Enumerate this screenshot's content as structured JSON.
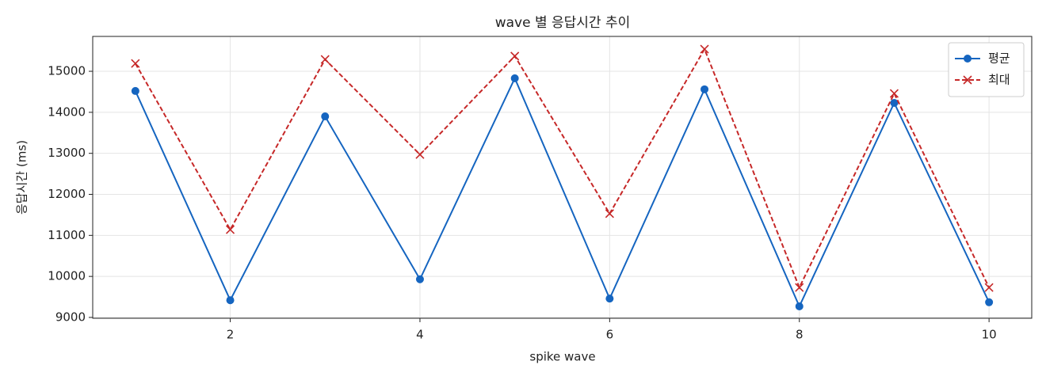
{
  "chart_data": {
    "type": "line",
    "title": "wave 별 응답시간 추이",
    "xlabel": "spike wave",
    "ylabel": "응답시간 (ms)",
    "x": [
      1,
      2,
      3,
      4,
      5,
      6,
      7,
      8,
      9,
      10
    ],
    "series": [
      {
        "name": "평균",
        "color": "#1565c0",
        "marker": "o",
        "linestyle": "solid",
        "values": [
          14520,
          9420,
          13900,
          9930,
          14830,
          9460,
          14560,
          9270,
          14230,
          9370
        ]
      },
      {
        "name": "최대",
        "color": "#c62828",
        "marker": "x",
        "linestyle": "dashed",
        "values": [
          15190,
          11140,
          15290,
          12970,
          15370,
          11530,
          15540,
          9730,
          14460,
          9730
        ]
      }
    ],
    "xlim": [
      0.55,
      10.45
    ],
    "ylim": [
      8980,
      15850
    ],
    "xticks": [
      2,
      4,
      6,
      8,
      10
    ],
    "yticks": [
      9000,
      10000,
      11000,
      12000,
      13000,
      14000,
      15000
    ],
    "grid": true,
    "legend": "upper right"
  }
}
